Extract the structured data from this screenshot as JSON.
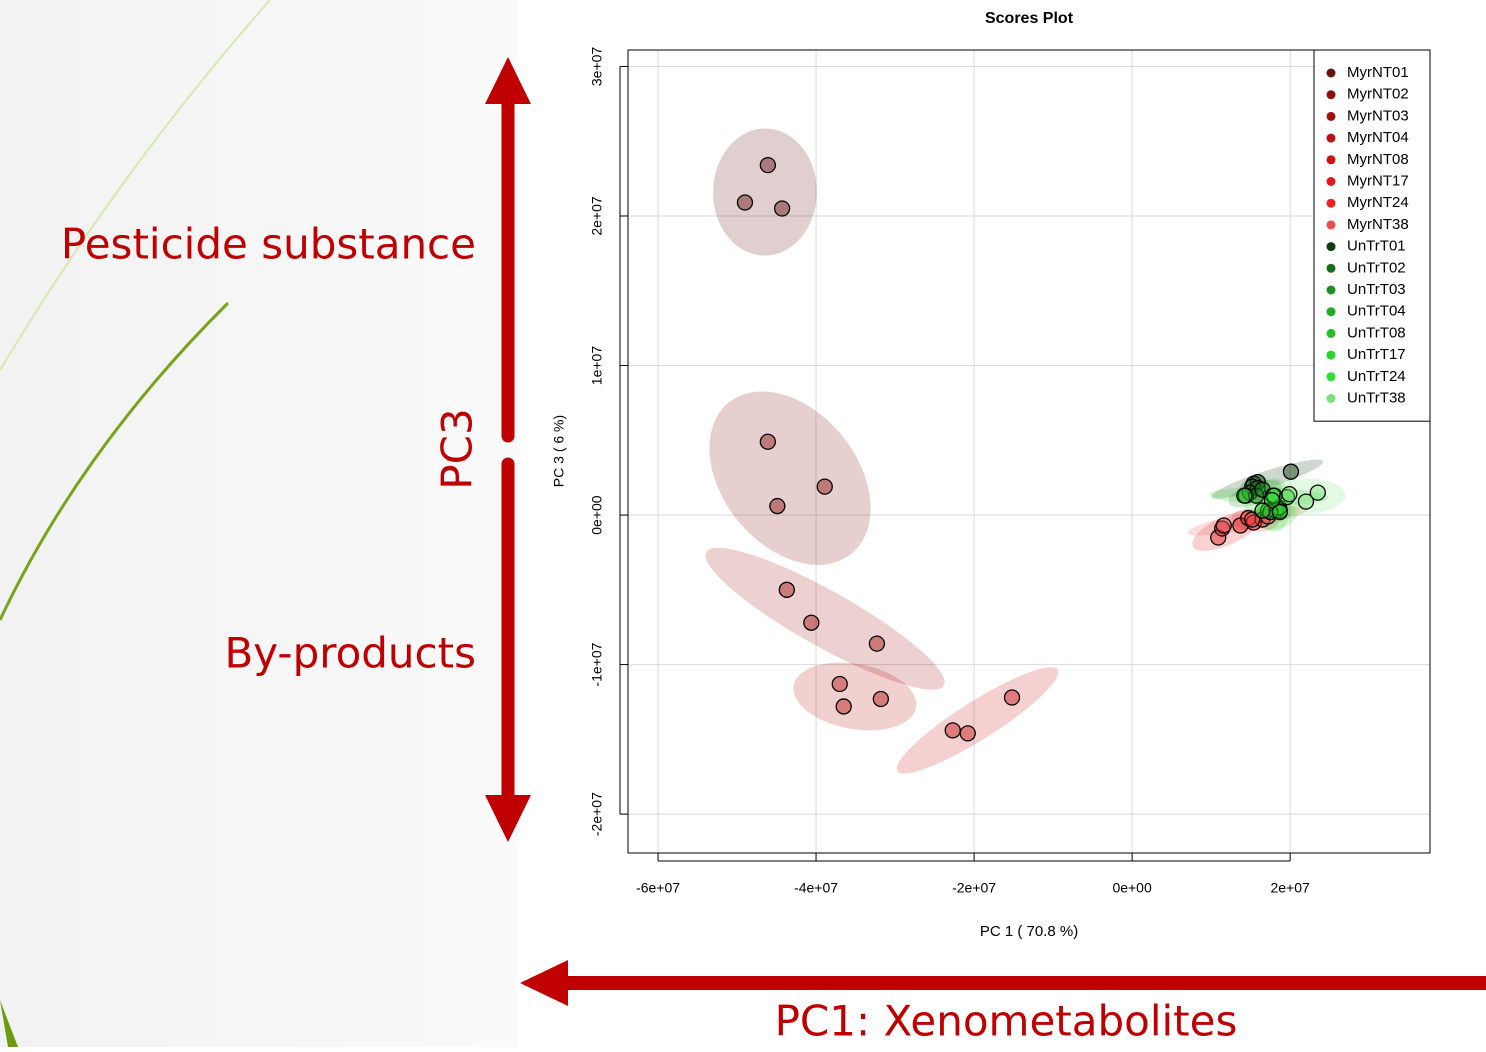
{
  "chart_data": {
    "type": "scatter",
    "title": "Scores Plot",
    "x_label": "PC 1 ( 70.8 %)",
    "y_label": "PC 3 ( 6 %)",
    "annotations": [
      "Pesticide substance",
      "By-products",
      "PC3",
      "PC1: Xenometabolites"
    ],
    "xlim": [
      -63800000,
      37700000
    ],
    "ylim": [
      -22600000,
      31100000
    ],
    "xticks": [
      {
        "value": -60000000,
        "label": "-6e+07"
      },
      {
        "value": -40000000,
        "label": "-4e+07"
      },
      {
        "value": -20000000,
        "label": "-2e+07"
      },
      {
        "value": 0,
        "label": "0e+00"
      },
      {
        "value": 20000000,
        "label": "2e+07"
      }
    ],
    "yticks": [
      {
        "value": -20000000,
        "label": "-2e+07"
      },
      {
        "value": -10000000,
        "label": "-1e+07"
      },
      {
        "value": 0,
        "label": "0e+00"
      },
      {
        "value": 10000000,
        "label": "1e+07"
      },
      {
        "value": 20000000,
        "label": "2e+07"
      },
      {
        "value": 30000000,
        "label": "3e+07"
      }
    ],
    "grid": true,
    "legend": "top-right",
    "series": [
      {
        "name": "MyrNT01",
        "color": "#6b1010",
        "x": [
          -46100000,
          -49000000,
          -44300000
        ],
        "values": [
          23400000,
          20900000,
          20500000
        ]
      },
      {
        "name": "MyrNT02",
        "color": "#8b0f0f",
        "x": [
          -46100000,
          -38900000,
          -44900000
        ],
        "values": [
          4900000,
          1900000,
          600000
        ]
      },
      {
        "name": "MyrNT03",
        "color": "#a31212",
        "x": [
          -43700000,
          -40600000,
          -32300000
        ],
        "values": [
          -5000000,
          -7200000,
          -8600000
        ]
      },
      {
        "name": "MyrNT04",
        "color": "#b81414",
        "x": [
          -37000000,
          -36500000,
          -31800000
        ],
        "values": [
          -11300000,
          -12800000,
          -12300000
        ]
      },
      {
        "name": "MyrNT08",
        "color": "#cc1515",
        "x": [
          -22700000,
          -20800000,
          -15200000
        ],
        "values": [
          -14400000,
          -14600000,
          -12200000
        ]
      },
      {
        "name": "MyrNT17",
        "color": "#e01a1a",
        "x": [
          10900000,
          11400000,
          13700000
        ],
        "values": [
          -1500000,
          -900000,
          -700000
        ]
      },
      {
        "name": "MyrNT24",
        "color": "#f02020",
        "x": [
          14700000,
          15400000,
          16500000
        ],
        "values": [
          -200000,
          -500000,
          -300000
        ]
      },
      {
        "name": "MyrNT38",
        "color": "#e85050",
        "x": [
          17200000,
          11600000,
          15200000
        ],
        "values": [
          -100000,
          -700000,
          -300000
        ]
      },
      {
        "name": "UnTrT01",
        "color": "#0d3d0d",
        "x": [
          15400000,
          15900000,
          20100000
        ],
        "values": [
          2100000,
          2200000,
          2900000
        ]
      },
      {
        "name": "UnTrT02",
        "color": "#1a6b1a",
        "x": [
          15200000,
          15900000,
          14900000
        ],
        "values": [
          1900000,
          1800000,
          1500000
        ]
      },
      {
        "name": "UnTrT03",
        "color": "#1f8f1f",
        "x": [
          14400000,
          15700000,
          16500000
        ],
        "values": [
          1300000,
          1300000,
          1700000
        ]
      },
      {
        "name": "UnTrT04",
        "color": "#22aa22",
        "x": [
          17200000,
          18200000,
          18700000
        ],
        "values": [
          300000,
          300000,
          300000
        ]
      },
      {
        "name": "UnTrT08",
        "color": "#26c026",
        "x": [
          17800000,
          18600000,
          17500000
        ],
        "values": [
          1300000,
          500000,
          200000
        ]
      },
      {
        "name": "UnTrT17",
        "color": "#2ad42a",
        "x": [
          18000000,
          19600000,
          14200000
        ],
        "values": [
          1300000,
          1200000,
          1300000
        ]
      },
      {
        "name": "UnTrT24",
        "color": "#30e030",
        "x": [
          18700000,
          17700000,
          16500000
        ],
        "values": [
          200000,
          1000000,
          300000
        ]
      },
      {
        "name": "UnTrT38",
        "color": "#77e077",
        "x": [
          22000000,
          23500000,
          19900000
        ],
        "values": [
          900000,
          1500000,
          1400000
        ]
      }
    ]
  }
}
